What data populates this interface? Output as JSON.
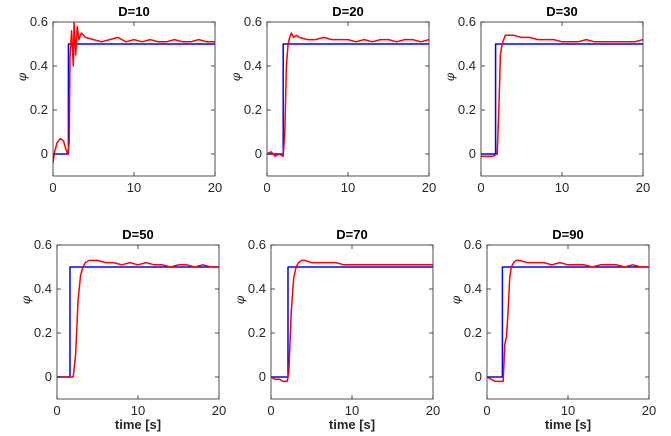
{
  "chart_data": [
    {
      "type": "line",
      "title": "D=10",
      "xlabel": "",
      "ylabel": "φ",
      "xlim": [
        0,
        20
      ],
      "ylim": [
        -0.1,
        0.6
      ],
      "xticks": [
        0,
        10,
        20
      ],
      "yticks": [
        0,
        0.2,
        0.4,
        0.6
      ],
      "xtick_labels": [
        "0",
        "10",
        "20"
      ],
      "ytick_labels": [
        "0",
        "0.2",
        "0.4",
        "0.6"
      ],
      "grid": false,
      "series": [
        {
          "color": "#0000ff",
          "x": [
            0,
            1.9,
            1.9,
            20
          ],
          "y": [
            0,
            0,
            0.5,
            0.5
          ]
        },
        {
          "color": "#ff0000",
          "x": [
            0,
            0.2,
            0.5,
            0.9,
            1.3,
            1.6,
            1.8,
            2.0,
            2.1,
            2.3,
            2.5,
            2.6,
            2.8,
            3.0,
            3.2,
            3.5,
            4.0,
            5,
            6,
            7,
            8,
            9,
            10,
            11,
            12,
            13,
            14,
            15,
            16,
            17,
            18,
            19,
            20
          ],
          "y": [
            -0.04,
            0.01,
            0.05,
            0.07,
            0.06,
            0.02,
            0.0,
            0.05,
            0.44,
            0.56,
            0.4,
            0.6,
            0.45,
            0.58,
            0.52,
            0.55,
            0.53,
            0.52,
            0.51,
            0.52,
            0.53,
            0.51,
            0.52,
            0.51,
            0.52,
            0.51,
            0.51,
            0.52,
            0.51,
            0.51,
            0.52,
            0.51,
            0.51
          ]
        }
      ]
    },
    {
      "type": "line",
      "title": "D=20",
      "xlabel": "",
      "ylabel": "φ",
      "xlim": [
        0,
        20
      ],
      "ylim": [
        -0.1,
        0.6
      ],
      "xticks": [
        0,
        10,
        20
      ],
      "yticks": [
        0,
        0.2,
        0.4,
        0.6
      ],
      "xtick_labels": [
        "0",
        "10",
        "20"
      ],
      "ytick_labels": [
        "0",
        "0.2",
        "0.4",
        "0.6"
      ],
      "grid": false,
      "series": [
        {
          "color": "#0000ff",
          "x": [
            0,
            2.0,
            2.0,
            20
          ],
          "y": [
            0,
            0,
            0.5,
            0.5
          ]
        },
        {
          "color": "#ff0000",
          "x": [
            0,
            0.5,
            1.0,
            1.5,
            2.0,
            2.2,
            2.4,
            2.6,
            2.8,
            3.0,
            3.3,
            3.6,
            4.0,
            5,
            6,
            7,
            8,
            9,
            10,
            11,
            12,
            13,
            14,
            15,
            16,
            17,
            18,
            19,
            20
          ],
          "y": [
            0,
            0.01,
            -0.01,
            0.0,
            -0.01,
            0.1,
            0.4,
            0.5,
            0.53,
            0.55,
            0.53,
            0.54,
            0.53,
            0.52,
            0.52,
            0.53,
            0.52,
            0.52,
            0.52,
            0.51,
            0.52,
            0.51,
            0.52,
            0.52,
            0.51,
            0.52,
            0.52,
            0.51,
            0.52
          ]
        }
      ]
    },
    {
      "type": "line",
      "title": "D=30",
      "xlabel": "",
      "ylabel": "φ",
      "xlim": [
        0,
        20
      ],
      "ylim": [
        -0.1,
        0.6
      ],
      "xticks": [
        0,
        10,
        20
      ],
      "yticks": [
        0,
        0.2,
        0.4,
        0.6
      ],
      "xtick_labels": [
        "0",
        "10",
        "20"
      ],
      "ytick_labels": [
        "0",
        "0.2",
        "0.4",
        "0.6"
      ],
      "grid": false,
      "series": [
        {
          "color": "#0000ff",
          "x": [
            0,
            1.8,
            1.8,
            20
          ],
          "y": [
            0,
            0,
            0.5,
            0.5
          ]
        },
        {
          "color": "#ff0000",
          "x": [
            0,
            0.5,
            1.0,
            1.5,
            2.0,
            2.2,
            2.4,
            2.6,
            2.8,
            3.0,
            3.5,
            4.0,
            5,
            6,
            7,
            8,
            9,
            10,
            11,
            12,
            13,
            14,
            15,
            16,
            17,
            18,
            19,
            20
          ],
          "y": [
            -0.01,
            -0.01,
            -0.01,
            -0.01,
            0.0,
            0.2,
            0.45,
            0.5,
            0.52,
            0.54,
            0.54,
            0.54,
            0.53,
            0.53,
            0.52,
            0.52,
            0.52,
            0.51,
            0.51,
            0.51,
            0.52,
            0.51,
            0.51,
            0.51,
            0.51,
            0.51,
            0.51,
            0.52
          ]
        }
      ]
    },
    {
      "type": "line",
      "title": "D=50",
      "xlabel": "time [s]",
      "ylabel": "φ",
      "xlim": [
        0,
        20
      ],
      "ylim": [
        -0.1,
        0.6
      ],
      "xticks": [
        0,
        10,
        20
      ],
      "yticks": [
        0,
        0.2,
        0.4,
        0.6
      ],
      "xtick_labels": [
        "0",
        "10",
        "20"
      ],
      "ytick_labels": [
        "0",
        "0.2",
        "0.4",
        "0.6"
      ],
      "grid": false,
      "series": [
        {
          "color": "#0000ff",
          "x": [
            0,
            1.6,
            1.6,
            20
          ],
          "y": [
            0,
            0,
            0.5,
            0.5
          ]
        },
        {
          "color": "#ff0000",
          "x": [
            0,
            0.5,
            1.0,
            1.5,
            2.0,
            2.3,
            2.6,
            2.9,
            3.2,
            3.5,
            4.0,
            4.5,
            5,
            6,
            7,
            8,
            9,
            10,
            11,
            12,
            13,
            14,
            15,
            16,
            17,
            18,
            19,
            20
          ],
          "y": [
            0,
            0,
            0,
            0,
            0,
            0.1,
            0.35,
            0.46,
            0.5,
            0.52,
            0.53,
            0.53,
            0.53,
            0.52,
            0.52,
            0.51,
            0.52,
            0.51,
            0.52,
            0.51,
            0.51,
            0.5,
            0.51,
            0.51,
            0.5,
            0.51,
            0.5,
            0.5
          ]
        }
      ]
    },
    {
      "type": "line",
      "title": "D=70",
      "xlabel": "time [s]",
      "ylabel": "φ",
      "xlim": [
        0,
        20
      ],
      "ylim": [
        -0.1,
        0.6
      ],
      "xticks": [
        0,
        10,
        20
      ],
      "yticks": [
        0,
        0.2,
        0.4,
        0.6
      ],
      "xtick_labels": [
        "0",
        "10",
        "20"
      ],
      "ytick_labels": [
        "0",
        "0.2",
        "0.4",
        "0.6"
      ],
      "grid": false,
      "series": [
        {
          "color": "#0000ff",
          "x": [
            0,
            2.1,
            2.1,
            20
          ],
          "y": [
            0,
            0,
            0.5,
            0.5
          ]
        },
        {
          "color": "#ff0000",
          "x": [
            0,
            0.5,
            1.0,
            1.5,
            2.0,
            2.2,
            2.5,
            2.8,
            3.1,
            3.4,
            3.8,
            4.2,
            5,
            6,
            7,
            8,
            9,
            10,
            11,
            12,
            13,
            14,
            15,
            16,
            17,
            18,
            19,
            20
          ],
          "y": [
            0,
            -0.01,
            -0.01,
            -0.02,
            -0.02,
            0.02,
            0.3,
            0.45,
            0.5,
            0.52,
            0.53,
            0.53,
            0.52,
            0.52,
            0.52,
            0.52,
            0.51,
            0.51,
            0.51,
            0.51,
            0.51,
            0.51,
            0.51,
            0.51,
            0.51,
            0.51,
            0.51,
            0.51
          ]
        }
      ]
    },
    {
      "type": "line",
      "title": "D=90",
      "xlabel": "time [s]",
      "ylabel": "φ",
      "xlim": [
        0,
        20
      ],
      "ylim": [
        -0.1,
        0.6
      ],
      "xticks": [
        0,
        10,
        20
      ],
      "yticks": [
        0,
        0.2,
        0.4,
        0.6
      ],
      "xtick_labels": [
        "0",
        "10",
        "20"
      ],
      "ytick_labels": [
        "0",
        "0.2",
        "0.4",
        "0.6"
      ],
      "grid": false,
      "series": [
        {
          "color": "#0000ff",
          "x": [
            0,
            1.9,
            1.9,
            20
          ],
          "y": [
            0,
            0,
            0.5,
            0.5
          ]
        },
        {
          "color": "#ff0000",
          "x": [
            0,
            0.5,
            1.0,
            1.5,
            2.0,
            2.2,
            2.4,
            2.6,
            2.8,
            3.0,
            3.3,
            3.6,
            4.0,
            5,
            6,
            7,
            8,
            9,
            10,
            11,
            12,
            13,
            14,
            15,
            16,
            17,
            18,
            19,
            20
          ],
          "y": [
            0,
            -0.01,
            -0.02,
            -0.02,
            -0.02,
            0.15,
            0.18,
            0.3,
            0.45,
            0.5,
            0.52,
            0.53,
            0.53,
            0.52,
            0.52,
            0.52,
            0.51,
            0.52,
            0.51,
            0.51,
            0.51,
            0.5,
            0.51,
            0.51,
            0.51,
            0.5,
            0.51,
            0.5,
            0.5
          ]
        }
      ]
    }
  ]
}
